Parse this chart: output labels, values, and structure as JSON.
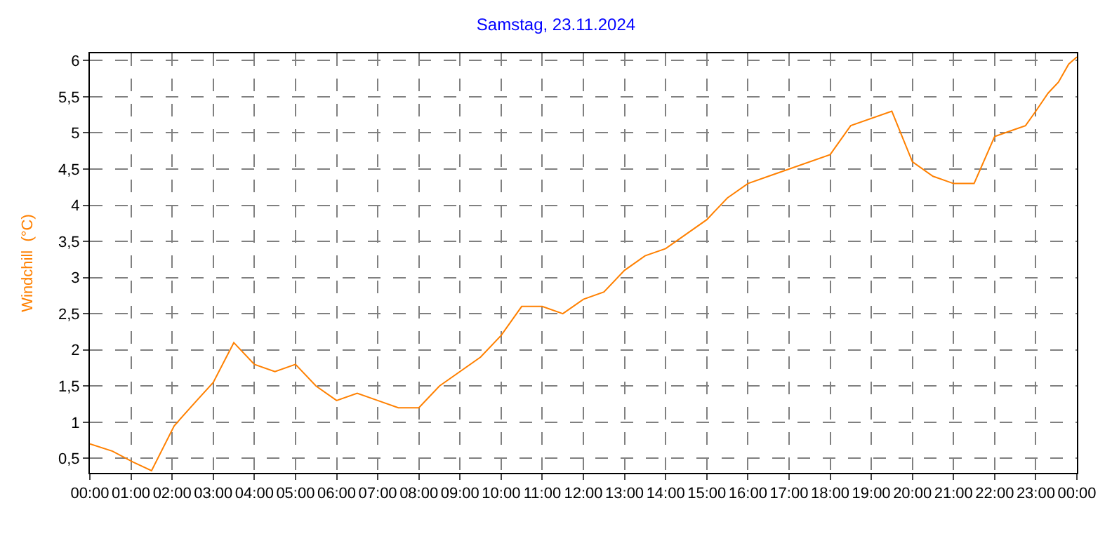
{
  "chart_data": {
    "type": "line",
    "title": "Samstag, 23.11.2024",
    "ylabel": "Windchill  (°C)",
    "x": [
      0,
      0.55,
      1.05,
      1.5,
      2.05,
      2.6,
      3.0,
      3.5,
      4.0,
      4.5,
      5.0,
      5.5,
      6.0,
      6.5,
      7.0,
      7.5,
      8.0,
      8.5,
      9.5,
      10,
      10.5,
      11,
      11.5,
      12,
      12.5,
      13,
      13.5,
      14,
      15,
      15.5,
      16,
      16.5,
      18,
      18.5,
      19.5,
      20,
      20.5,
      21,
      21.5,
      22,
      22.5,
      22.75,
      23,
      23.3,
      23.55,
      23.8,
      24
    ],
    "series": [
      {
        "color": "#ff8000",
        "values": [
          0.7,
          0.6,
          0.45,
          0.33,
          0.95,
          1.3,
          1.55,
          2.1,
          1.8,
          1.7,
          1.8,
          1.5,
          1.3,
          1.4,
          1.3,
          1.2,
          1.2,
          1.5,
          1.9,
          2.2,
          2.6,
          2.6,
          2.5,
          2.7,
          2.8,
          3.1,
          3.3,
          3.4,
          3.8,
          4.1,
          4.3,
          4.4,
          4.7,
          5.1,
          5.3,
          4.6,
          4.4,
          4.3,
          4.3,
          4.95,
          5.05,
          5.1,
          5.3,
          5.55,
          5.7,
          5.95,
          6.05
        ]
      }
    ],
    "xlim": [
      0,
      24
    ],
    "xticks": [
      {
        "value": 0,
        "label": "00:00"
      },
      {
        "value": 1,
        "label": "01:00"
      },
      {
        "value": 2,
        "label": "02:00"
      },
      {
        "value": 3,
        "label": "03:00"
      },
      {
        "value": 4,
        "label": "04:00"
      },
      {
        "value": 5,
        "label": "05:00"
      },
      {
        "value": 6,
        "label": "06:00"
      },
      {
        "value": 7,
        "label": "07:00"
      },
      {
        "value": 8,
        "label": "08:00"
      },
      {
        "value": 9,
        "label": "09:00"
      },
      {
        "value": 10,
        "label": "10:00"
      },
      {
        "value": 11,
        "label": "11:00"
      },
      {
        "value": 12,
        "label": "12:00"
      },
      {
        "value": 13,
        "label": "13:00"
      },
      {
        "value": 14,
        "label": "14:00"
      },
      {
        "value": 15,
        "label": "15:00"
      },
      {
        "value": 16,
        "label": "16:00"
      },
      {
        "value": 17,
        "label": "17:00"
      },
      {
        "value": 18,
        "label": "18:00"
      },
      {
        "value": 19,
        "label": "19:00"
      },
      {
        "value": 20,
        "label": "20:00"
      },
      {
        "value": 21,
        "label": "21:00"
      },
      {
        "value": 22,
        "label": "22:00"
      },
      {
        "value": 23,
        "label": "23:00"
      },
      {
        "value": 24,
        "label": "00:00"
      }
    ],
    "ylim": [
      0.3,
      6.1
    ],
    "yticks": [
      {
        "value": 0.5,
        "label": "0,5"
      },
      1,
      {
        "value": 1.5,
        "label": "1,5"
      },
      2,
      {
        "value": 2.5,
        "label": "2,5"
      },
      3,
      {
        "value": 3.5,
        "label": "3,5"
      },
      4,
      {
        "value": 4.5,
        "label": "4,5"
      },
      5,
      {
        "value": 5.5,
        "label": "5,5"
      },
      6
    ],
    "grid": true,
    "line_style": "solid",
    "marker": "none"
  }
}
